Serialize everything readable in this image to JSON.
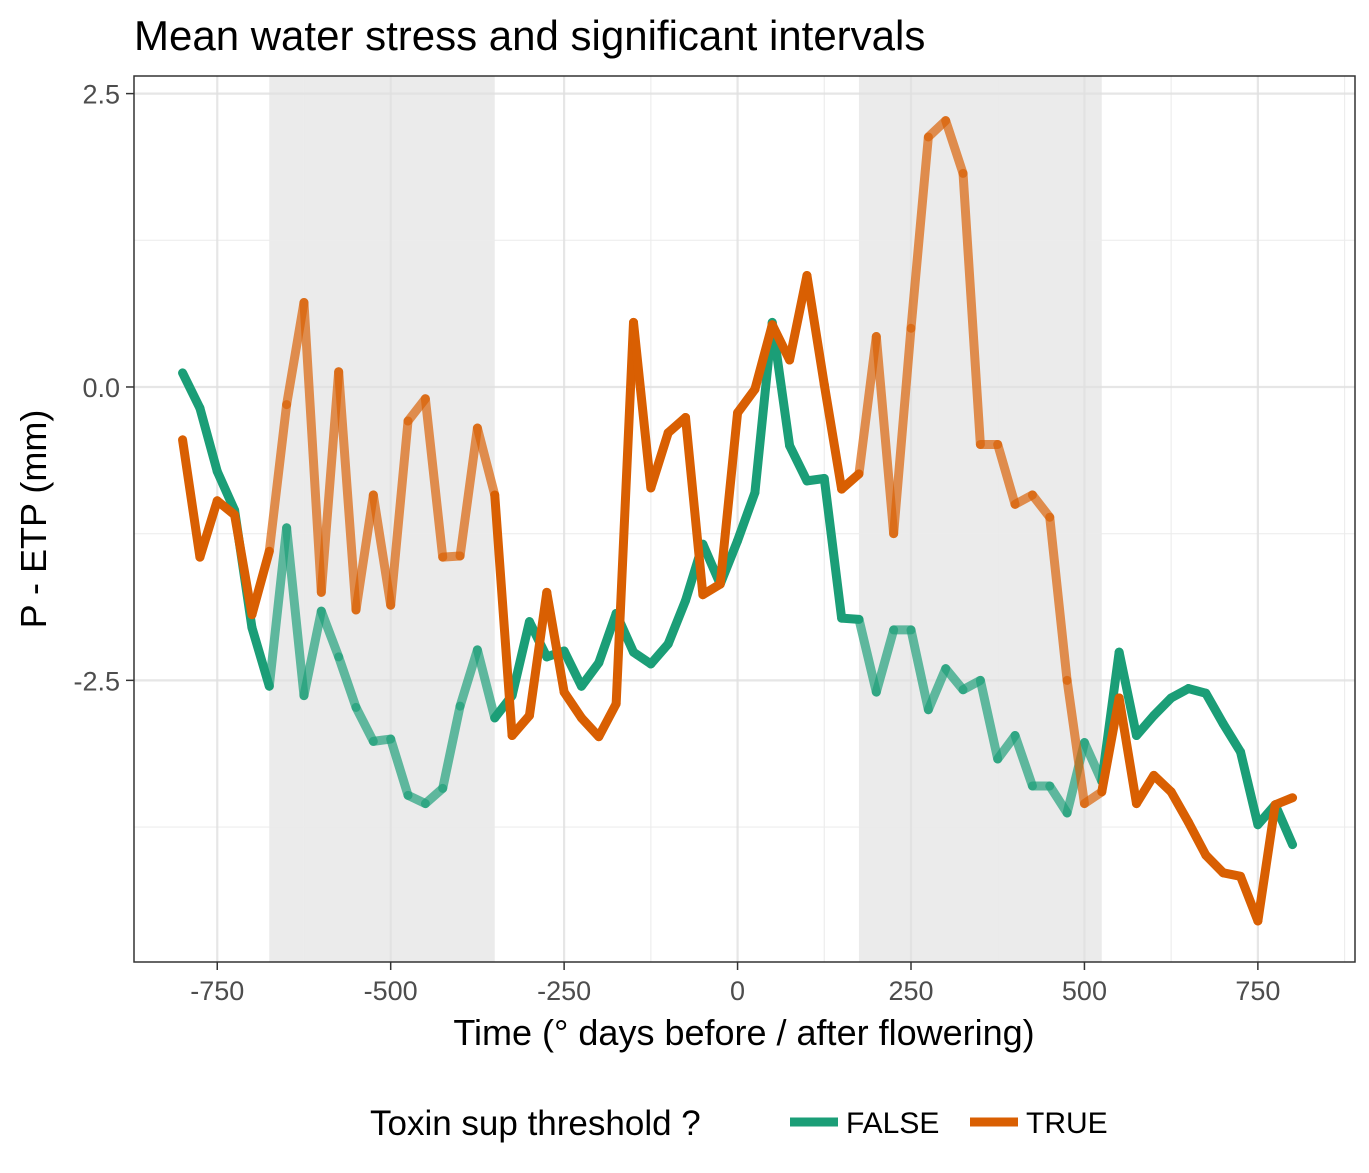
{
  "chart_data": {
    "type": "line",
    "title": "Mean water stress and significant intervals",
    "xlabel": "Time (° days before / after flowering)",
    "ylabel": "P - ETP (mm)",
    "xlim": [
      -870,
      890
    ],
    "ylim": [
      -4.9,
      2.65
    ],
    "xticks": [
      -750,
      -500,
      -250,
      0,
      250,
      500,
      750
    ],
    "xtick_labels": [
      "-750",
      "-500",
      "-250",
      "0",
      "250",
      "500",
      "750"
    ],
    "yticks": [
      2.5,
      0,
      -2.5
    ],
    "ytick_labels": [
      "2.5",
      "0.0",
      "-2.5"
    ],
    "grid": true,
    "legend": {
      "title": "Toxin sup threshold ?",
      "position": "bottom",
      "entries": [
        {
          "label": "FALSE",
          "color": "#1b9e77"
        },
        {
          "label": "TRUE",
          "color": "#d95f02"
        }
      ]
    },
    "significant_intervals": [
      [
        -675,
        -350
      ],
      [
        175,
        525
      ]
    ],
    "x": [
      -800,
      -775,
      -750,
      -725,
      -700,
      -675,
      -650,
      -625,
      -600,
      -575,
      -550,
      -525,
      -500,
      -475,
      -450,
      -425,
      -400,
      -375,
      -350,
      -325,
      -300,
      -275,
      -250,
      -225,
      -200,
      -175,
      -150,
      -125,
      -100,
      -75,
      -50,
      -25,
      0,
      25,
      50,
      75,
      100,
      125,
      150,
      175,
      200,
      225,
      250,
      275,
      300,
      325,
      350,
      375,
      400,
      425,
      450,
      475,
      500,
      525,
      550,
      575,
      600,
      625,
      650,
      675,
      700,
      725,
      750,
      775,
      800
    ],
    "series": [
      {
        "name": "FALSE",
        "color": "#1b9e77",
        "values": [
          0.12,
          -0.18,
          -0.72,
          -1.05,
          -2.05,
          -2.55,
          -1.2,
          -2.63,
          -1.91,
          -2.3,
          -2.73,
          -3.02,
          -3.0,
          -3.48,
          -3.55,
          -3.42,
          -2.72,
          -2.24,
          -2.82,
          -2.63,
          -2.0,
          -2.3,
          -2.25,
          -2.55,
          -2.35,
          -1.93,
          -2.26,
          -2.36,
          -2.19,
          -1.82,
          -1.34,
          -1.68,
          -1.31,
          -0.9,
          0.55,
          -0.5,
          -0.8,
          -0.78,
          -1.97,
          -1.98,
          -2.6,
          -2.07,
          -2.07,
          -2.75,
          -2.4,
          -2.58,
          -2.5,
          -3.17,
          -2.97,
          -3.4,
          -3.4,
          -3.63,
          -3.03,
          -3.36,
          -2.26,
          -2.97,
          -2.8,
          -2.65,
          -2.57,
          -2.61,
          -2.87,
          -3.11,
          -3.73,
          -3.56,
          -3.9
        ]
      },
      {
        "name": "TRUE",
        "color": "#d95f02",
        "values": [
          -0.45,
          -1.45,
          -0.97,
          -1.09,
          -1.94,
          -1.4,
          -0.15,
          0.72,
          -1.75,
          0.13,
          -1.9,
          -0.92,
          -1.86,
          -0.29,
          -0.1,
          -1.45,
          -1.44,
          -0.35,
          -0.92,
          -2.97,
          -2.8,
          -1.75,
          -2.6,
          -2.82,
          -2.98,
          -2.7,
          0.55,
          -0.86,
          -0.39,
          -0.26,
          -1.77,
          -1.68,
          -0.22,
          -0.02,
          0.53,
          0.23,
          0.95,
          0.02,
          -0.87,
          -0.74,
          0.43,
          -1.25,
          0.5,
          2.13,
          2.27,
          1.82,
          -0.49,
          -0.49,
          -1.0,
          -0.92,
          -1.11,
          -2.5,
          -3.55,
          -3.45,
          -2.65,
          -3.55,
          -3.31,
          -3.45,
          -3.71,
          -3.99,
          -4.14,
          -4.17,
          -4.55,
          -3.56,
          -3.5
        ]
      }
    ]
  }
}
